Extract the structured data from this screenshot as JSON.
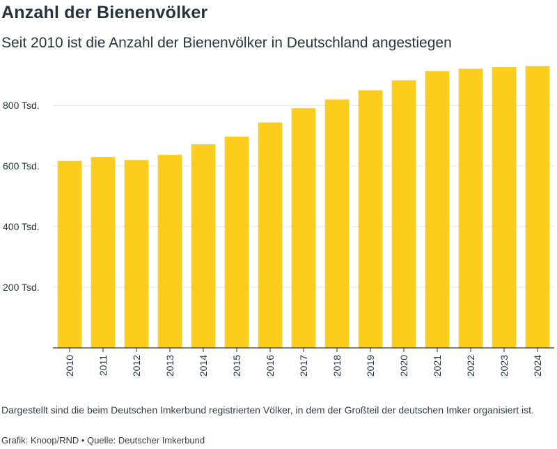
{
  "header": {
    "title": "Anzahl der Bienenvölker",
    "subtitle": "Seit 2010 ist die Anzahl der Bienenvölker in Deutschland angestiegen"
  },
  "footer": {
    "note": "Dargestellt sind die beim Deutschen Imkerbund registrierten Völker, in dem der Großteil der deutschen Imker organisiert ist.",
    "credit": "Grafik: Knoop/RND • Quelle: Deutscher Imkerbund"
  },
  "colors": {
    "bar": "#fdcd1d",
    "grid": "#e3e3e3",
    "axis": "#333333",
    "text": "#26323d"
  },
  "chart_data": {
    "type": "bar",
    "categories": [
      "2010",
      "2011",
      "2012",
      "2013",
      "2014",
      "2015",
      "2016",
      "2017",
      "2018",
      "2019",
      "2020",
      "2021",
      "2022",
      "2023",
      "2024"
    ],
    "values": [
      617,
      630,
      620,
      637,
      672,
      697,
      744,
      791,
      820,
      850,
      883,
      913,
      921,
      927,
      930
    ],
    "title": "Anzahl der Bienenvölker",
    "xlabel": "",
    "ylabel": "",
    "ylim": [
      0,
      960
    ],
    "yticks": [
      200,
      400,
      600,
      800
    ],
    "ytick_labels": [
      "200 Tsd.",
      "400 Tsd.",
      "600 Tsd.",
      "800 Tsd."
    ],
    "grid": true,
    "xtick_rotation": "vertical"
  }
}
